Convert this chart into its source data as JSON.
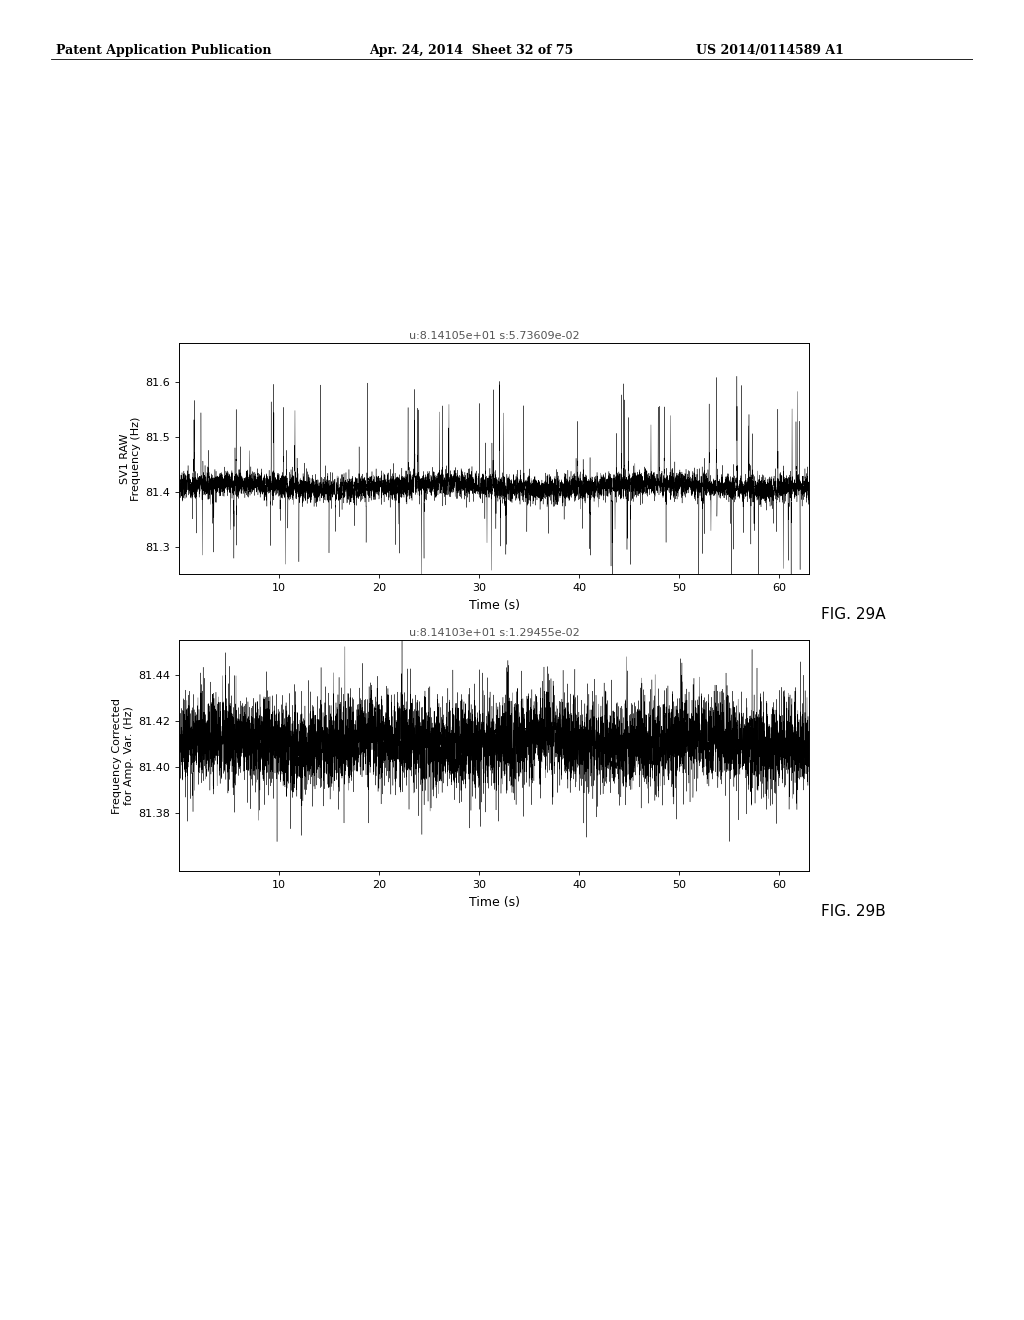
{
  "fig_width": 10.24,
  "fig_height": 13.2,
  "bg_color": "#ffffff",
  "header_left": "Patent Application Publication",
  "header_mid": "Apr. 24, 2014  Sheet 32 of 75",
  "header_right": "US 2014/0114589 A1",
  "plot1": {
    "title": "u:8.14105e+01 s:5.73609e-02",
    "ylabel_line1": "SV1 RAW",
    "ylabel_line2": "Frequency (Hz)",
    "xlabel": "Time (s)",
    "fig_label": "FIG. 29A",
    "xlim": [
      0,
      63
    ],
    "xticks": [
      10,
      20,
      30,
      40,
      50,
      60
    ],
    "ylim": [
      81.25,
      81.67
    ],
    "yticks": [
      81.3,
      81.4,
      81.5,
      81.6
    ],
    "mean": 81.41,
    "color": "#000000"
  },
  "plot2": {
    "title": "u:8.14103e+01 s:1.29455e-02",
    "ylabel_line1": "Frequency Corrected",
    "ylabel_line2": "for Amp. Var. (Hz)",
    "xlabel": "Time (s)",
    "fig_label": "FIG. 29B",
    "xlim": [
      0,
      63
    ],
    "xticks": [
      10,
      20,
      30,
      40,
      50,
      60
    ],
    "ylim": [
      81.355,
      81.455
    ],
    "yticks": [
      81.38,
      81.4,
      81.42,
      81.44
    ],
    "mean": 81.411,
    "color": "#000000"
  }
}
